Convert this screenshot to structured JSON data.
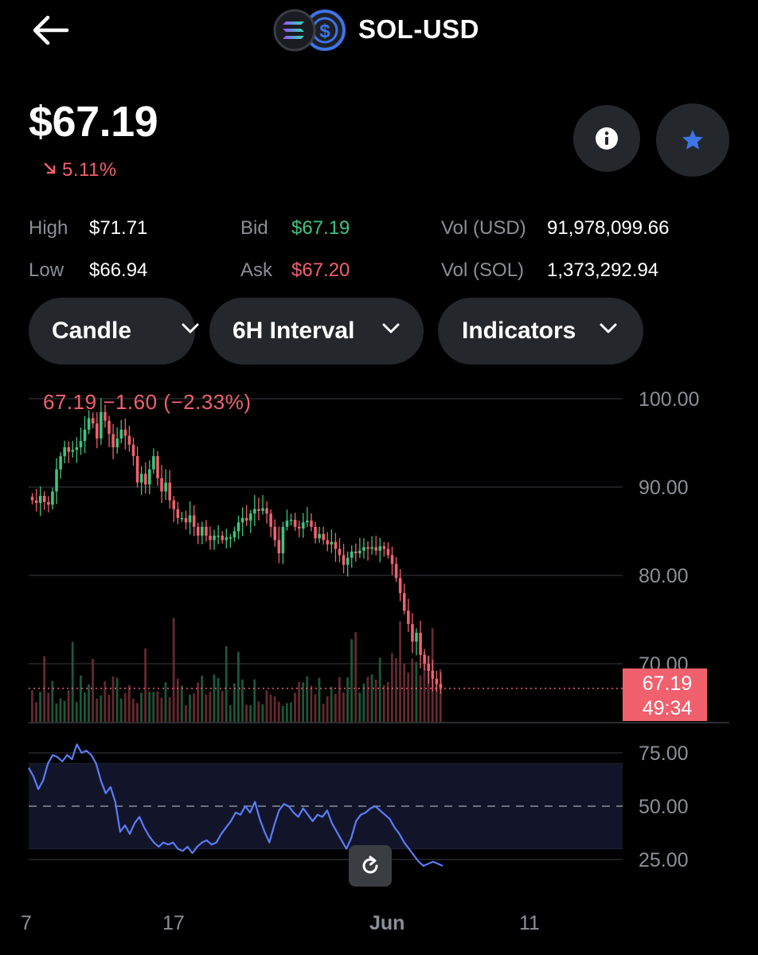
{
  "header": {
    "title": "SOL-USD",
    "back_icon": "arrow-left-icon",
    "coin_icons": [
      "solana-logo-icon",
      "usd-coin-icon"
    ]
  },
  "price": {
    "current": "$67.19",
    "change_pct": "5.11%",
    "change_direction": "down"
  },
  "stats": {
    "high_label": "High",
    "high_value": "$71.71",
    "low_label": "Low",
    "low_value": "$66.94",
    "bid_label": "Bid",
    "bid_value": "$67.19",
    "ask_label": "Ask",
    "ask_value": "$67.20",
    "vol_usd_label": "Vol (USD)",
    "vol_usd_value": "91,978,099.66",
    "vol_sol_label": "Vol (SOL)",
    "vol_sol_value": "1,373,292.94"
  },
  "controls": {
    "chart_type": "Candle",
    "interval": "6H Interval",
    "indicators": "Indicators"
  },
  "chart": {
    "legend": "67.19  −1.60 (−2.33%)",
    "price_axis": [
      "100.00",
      "90.00",
      "80.00",
      "70.00"
    ],
    "price_range": [
      66,
      100
    ],
    "current_price_tag": "67.19",
    "countdown_tag": "49:34",
    "rsi_axis": [
      "75.00",
      "50.00",
      "25.00"
    ],
    "x_axis": [
      "7",
      "17",
      "Jun",
      "11"
    ],
    "colors": {
      "up": "#3ec47f",
      "down": "#f0616d",
      "rsi": "#5b7cf5",
      "price_tag": "#f0616d"
    }
  },
  "chart_data": {
    "type": "candlestick",
    "close_series": [
      88.5,
      88.2,
      89,
      88.3,
      88,
      89.5,
      92,
      93.5,
      94.5,
      94,
      94.2,
      94.5,
      95.2,
      96.5,
      97.8,
      97.2,
      95.5,
      98.5,
      97.5,
      96,
      94.5,
      95.5,
      96.5,
      95.8,
      94.8,
      93.5,
      90.5,
      91.5,
      90.3,
      92,
      93.5,
      91,
      89.5,
      90.5,
      88.5,
      87.5,
      86.5,
      86.5,
      86,
      86.8,
      85.5,
      84.5,
      85.5,
      84.5,
      84,
      84.5,
      84.5,
      84,
      84.3,
      84.3,
      85,
      86,
      86.5,
      86.2,
      87,
      87.5,
      87.3,
      87.6,
      87,
      85.5,
      84,
      82.5,
      85.5,
      86.2,
      86.3,
      85.5,
      85.3,
      86,
      86.2,
      85.5,
      84.2,
      84.7,
      84,
      83.5,
      83.8,
      83,
      82.3,
      81.2,
      82,
      82.7,
      82.5,
      82.8,
      83.2,
      83,
      83.2,
      82.8,
      83.3,
      83,
      82.3,
      81.3,
      79.7,
      78,
      76,
      74.5,
      72.5,
      73.5,
      71,
      70,
      69.2,
      68.3,
      67.7,
      67.2
    ],
    "rsi_series": [
      68,
      64,
      58,
      62,
      70,
      74,
      73,
      71,
      74,
      72,
      79,
      75,
      76,
      74,
      70,
      62,
      56,
      59,
      52,
      38,
      41,
      37,
      42,
      45,
      40,
      36,
      33,
      31,
      33,
      32,
      33,
      30,
      29,
      31,
      28,
      31,
      33,
      34,
      32,
      33,
      37,
      40,
      43,
      47,
      46,
      50,
      47,
      52,
      44,
      38,
      33,
      41,
      48,
      51,
      50,
      47,
      45,
      49,
      46,
      43,
      46,
      45,
      48,
      42,
      38,
      34,
      30,
      35,
      43,
      46,
      47,
      49,
      50,
      48,
      46,
      44,
      40,
      37,
      33,
      30,
      27,
      24,
      22,
      23,
      24,
      23,
      22
    ],
    "rsi_levels": [
      70,
      50,
      30
    ],
    "price_range": [
      66,
      100
    ],
    "rsi_range": [
      15,
      85
    ]
  }
}
